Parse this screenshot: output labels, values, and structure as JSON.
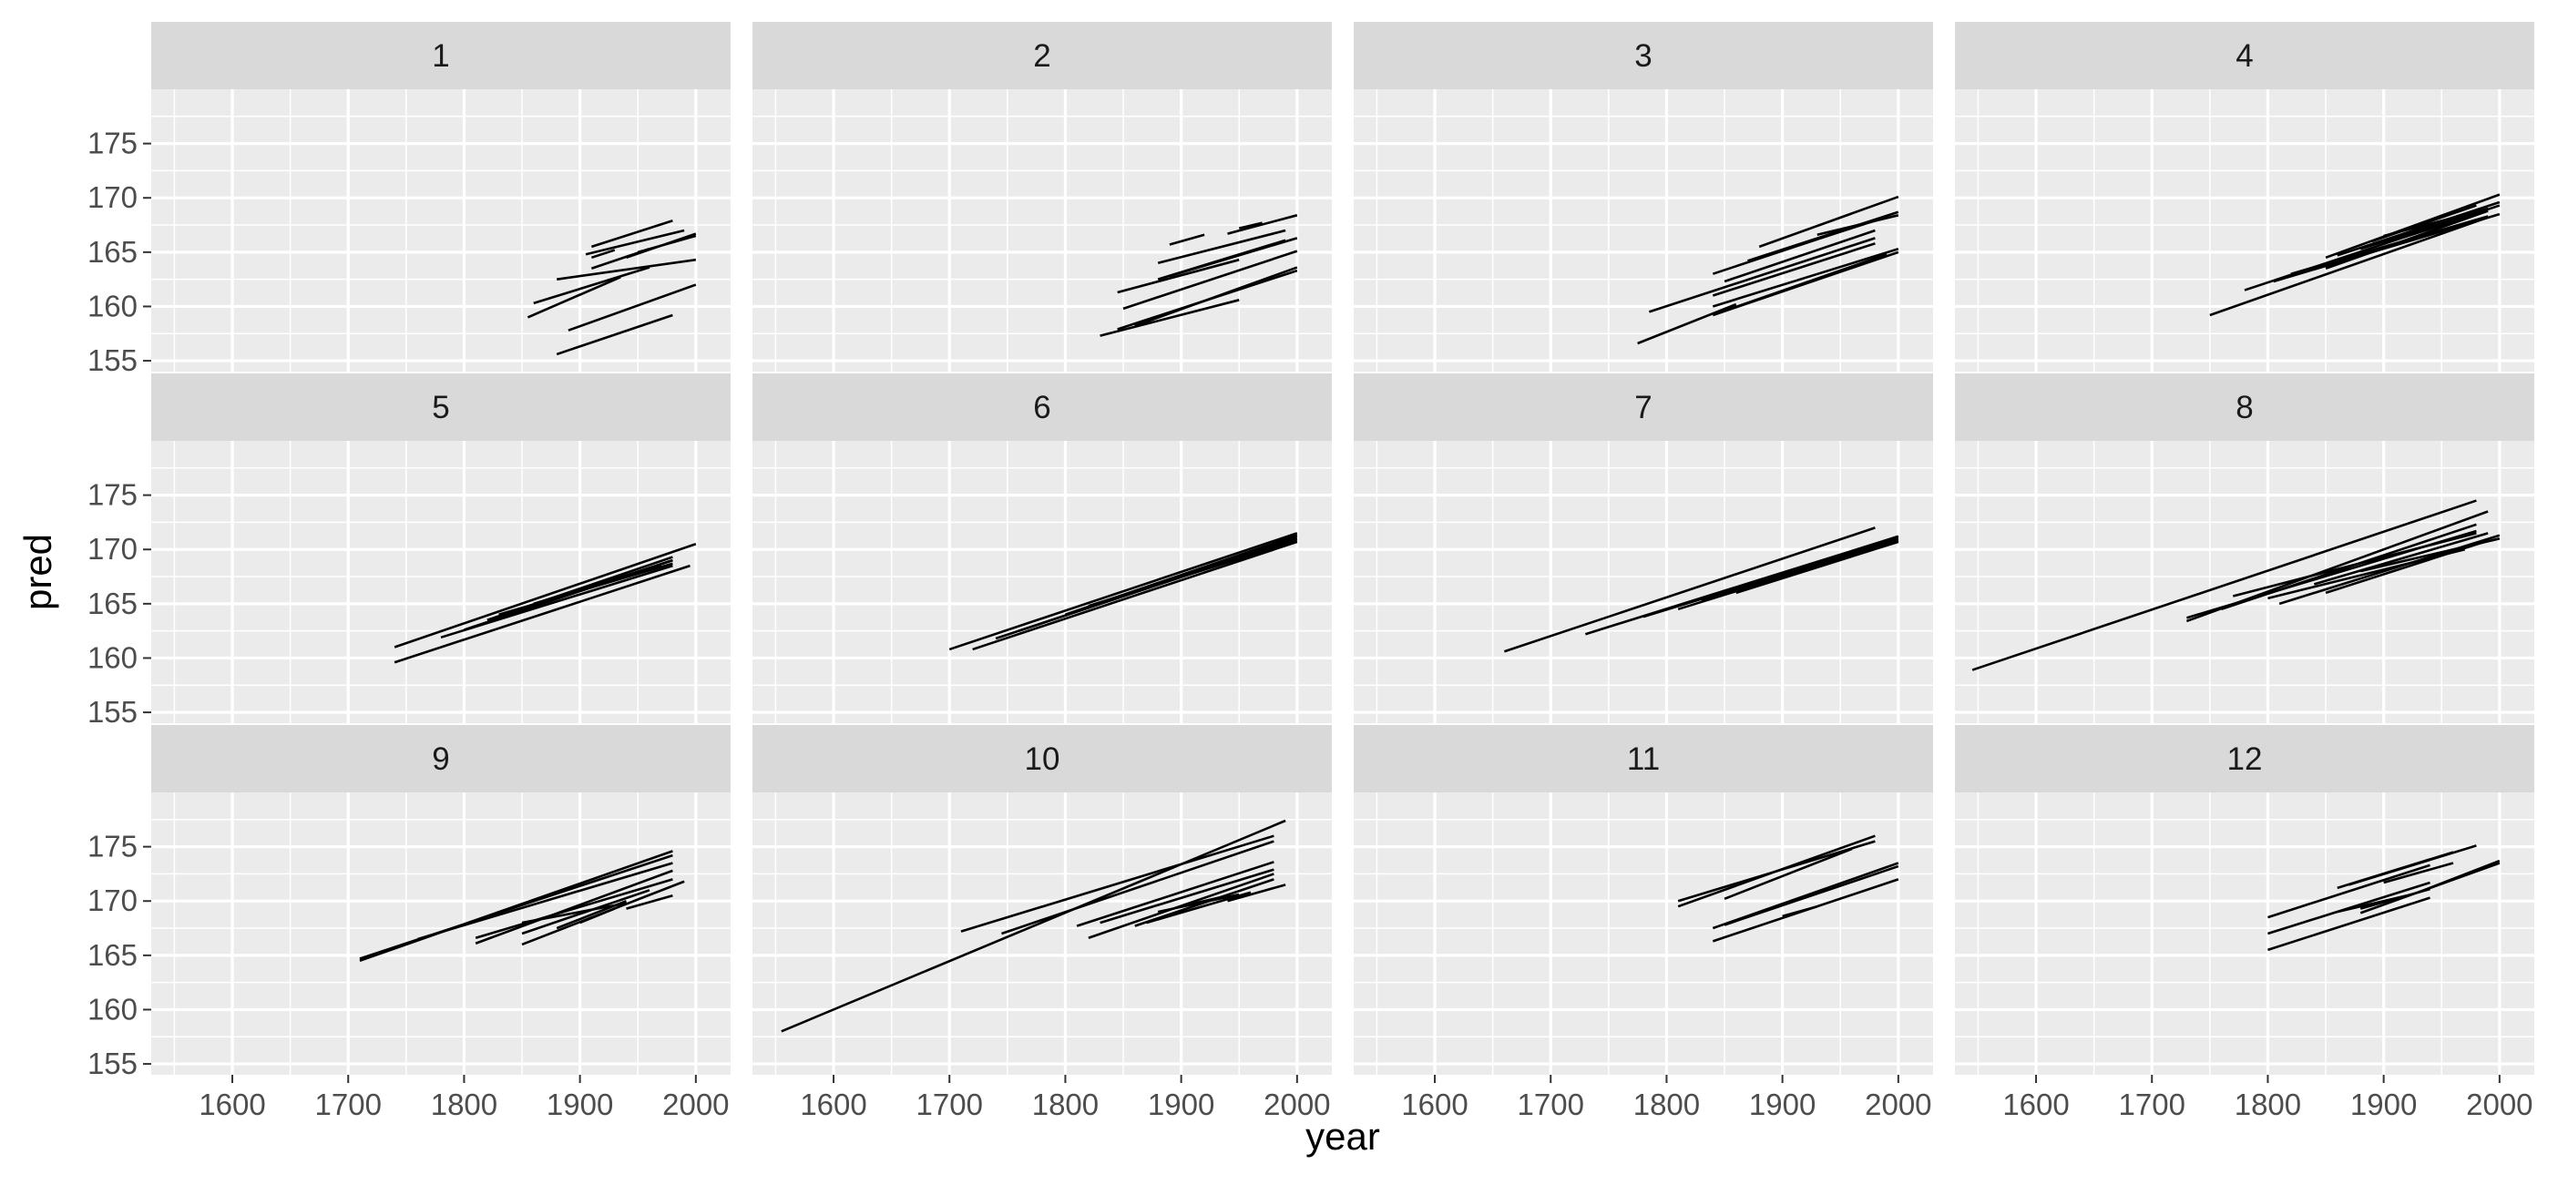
{
  "chart_data": {
    "type": "line",
    "xlabel": "year",
    "ylabel": "pred",
    "xlim": [
      1530,
      2030
    ],
    "ylim": [
      154,
      180
    ],
    "x_ticks": [
      1600,
      1700,
      1800,
      1900,
      2000
    ],
    "y_ticks": [
      155,
      160,
      165,
      170,
      175
    ],
    "grid": true,
    "panels": [
      {
        "label": "1",
        "segments": [
          [
            1880,
            155.6,
            1980,
            159.2
          ],
          [
            1890,
            157.8,
            2000,
            162.0
          ],
          [
            1855,
            159.0,
            1935,
            162.7
          ],
          [
            1860,
            160.3,
            1960,
            163.6
          ],
          [
            1880,
            162.5,
            2000,
            164.3
          ],
          [
            1910,
            163.5,
            1960,
            165.3
          ],
          [
            1910,
            164.5,
            1930,
            165.2
          ],
          [
            1905,
            164.8,
            1990,
            167.0
          ],
          [
            1910,
            165.5,
            1980,
            167.9
          ],
          [
            1940,
            164.5,
            2000,
            166.7
          ],
          [
            1950,
            165.0,
            2000,
            166.5
          ]
        ]
      },
      {
        "label": "2",
        "segments": [
          [
            1830,
            157.3,
            1950,
            160.6
          ],
          [
            1845,
            157.9,
            2000,
            163.3
          ],
          [
            1860,
            158.2,
            2000,
            163.6
          ],
          [
            1850,
            159.8,
            2000,
            165.1
          ],
          [
            1845,
            161.3,
            1950,
            164.3
          ],
          [
            1880,
            162.5,
            1990,
            166.1
          ],
          [
            1890,
            162.8,
            2000,
            166.3
          ],
          [
            1880,
            164.0,
            1990,
            167.0
          ],
          [
            1890,
            165.7,
            1920,
            166.6
          ],
          [
            1950,
            167.2,
            1970,
            167.7
          ],
          [
            1940,
            166.7,
            2000,
            168.4
          ]
        ]
      },
      {
        "label": "3",
        "segments": [
          [
            1775,
            156.6,
            1860,
            160.2
          ],
          [
            1840,
            159.2,
            2000,
            165.0
          ],
          [
            1850,
            159.6,
            1990,
            164.8
          ],
          [
            1840,
            160.0,
            2000,
            165.3
          ],
          [
            1785,
            159.5,
            1980,
            166.3
          ],
          [
            1840,
            161.0,
            1980,
            165.8
          ],
          [
            1840,
            163.0,
            1990,
            168.3
          ],
          [
            1850,
            162.3,
            1980,
            167.0
          ],
          [
            1870,
            164.2,
            2000,
            168.7
          ],
          [
            1880,
            164.5,
            1980,
            167.9
          ],
          [
            1880,
            165.5,
            2000,
            170.1
          ],
          [
            1930,
            166.6,
            2000,
            168.4
          ]
        ]
      },
      {
        "label": "4",
        "segments": [
          [
            1750,
            159.2,
            1990,
            168.2
          ],
          [
            1780,
            161.5,
            2000,
            169.3
          ],
          [
            1805,
            162.3,
            2000,
            168.5
          ],
          [
            1820,
            163.0,
            1990,
            168.3
          ],
          [
            1850,
            164.5,
            2000,
            170.3
          ],
          [
            1860,
            164.7,
            2000,
            169.6
          ],
          [
            1880,
            165.3,
            1990,
            169.0
          ],
          [
            1890,
            166.0,
            1980,
            169.3
          ],
          [
            1900,
            166.5,
            1990,
            169.0
          ],
          [
            1850,
            163.5,
            1990,
            168.8
          ],
          [
            1900,
            165.8,
            1990,
            168.8
          ]
        ]
      },
      {
        "label": "5",
        "segments": [
          [
            1740,
            159.6,
            1995,
            168.5
          ],
          [
            1740,
            161.0,
            2000,
            170.5
          ],
          [
            1780,
            161.9,
            1980,
            168.5
          ],
          [
            1800,
            162.6,
            1980,
            169.0
          ],
          [
            1820,
            163.5,
            1980,
            169.3
          ],
          [
            1850,
            164.5,
            1980,
            169.0
          ],
          [
            1830,
            164.0,
            1980,
            168.7
          ],
          [
            1860,
            165.0,
            1970,
            168.6
          ]
        ]
      },
      {
        "label": "6",
        "segments": [
          [
            1700,
            160.8,
            2000,
            171.5
          ],
          [
            1720,
            160.8,
            2000,
            170.7
          ],
          [
            1740,
            161.8,
            2000,
            171.0
          ],
          [
            1760,
            162.5,
            2000,
            171.0
          ],
          [
            1800,
            164.0,
            2000,
            171.3
          ],
          [
            1820,
            164.8,
            2000,
            170.8
          ],
          [
            1850,
            165.7,
            2000,
            171.2
          ]
        ]
      },
      {
        "label": "7",
        "segments": [
          [
            1660,
            160.6,
            1980,
            172.0
          ],
          [
            1730,
            162.2,
            2000,
            171.2
          ],
          [
            1780,
            163.8,
            2000,
            171.0
          ],
          [
            1810,
            164.5,
            2000,
            170.8
          ],
          [
            1830,
            165.3,
            2000,
            171.2
          ],
          [
            1860,
            166.0,
            2000,
            170.7
          ],
          [
            1870,
            166.5,
            1990,
            170.5
          ],
          [
            1900,
            167.6,
            2000,
            170.8
          ]
        ]
      },
      {
        "label": "8",
        "segments": [
          [
            1545,
            158.9,
            1980,
            174.5
          ],
          [
            1730,
            163.4,
            1990,
            173.5
          ],
          [
            1760,
            164.5,
            1980,
            172.3
          ],
          [
            1730,
            163.7,
            1980,
            171.7
          ],
          [
            1770,
            165.7,
            1980,
            171.5
          ],
          [
            1810,
            165.0,
            2000,
            171.3
          ],
          [
            1840,
            166.8,
            1990,
            171.5
          ],
          [
            1850,
            166.0,
            1990,
            170.8
          ],
          [
            1880,
            168.0,
            2000,
            171.0
          ],
          [
            1800,
            165.5,
            1970,
            170.0
          ]
        ]
      },
      {
        "label": "9",
        "segments": [
          [
            1710,
            164.5,
            1980,
            174.6
          ],
          [
            1710,
            164.7,
            1980,
            174.2
          ],
          [
            1760,
            166.5,
            1980,
            173.5
          ],
          [
            1810,
            166.1,
            1980,
            172.8
          ],
          [
            1810,
            166.6,
            1980,
            172.0
          ],
          [
            1850,
            166.0,
            1990,
            171.8
          ],
          [
            1850,
            167.0,
            1960,
            171.0
          ],
          [
            1880,
            167.5,
            1940,
            170.0
          ],
          [
            1900,
            168.0,
            1930,
            169.3
          ],
          [
            1940,
            169.3,
            1980,
            170.5
          ],
          [
            1850,
            168.0,
            1940,
            169.8
          ]
        ]
      },
      {
        "label": "10",
        "segments": [
          [
            1555,
            158.0,
            1990,
            177.4
          ],
          [
            1710,
            167.2,
            1980,
            176.0
          ],
          [
            1745,
            167.0,
            1980,
            175.5
          ],
          [
            1810,
            167.7,
            1980,
            173.6
          ],
          [
            1820,
            166.6,
            1980,
            172.5
          ],
          [
            1830,
            168.0,
            1980,
            172.9
          ],
          [
            1860,
            167.7,
            1980,
            172.0
          ],
          [
            1870,
            168.0,
            1960,
            170.8
          ],
          [
            1880,
            169.0,
            1950,
            170.6
          ],
          [
            1900,
            169.5,
            1940,
            170.5
          ],
          [
            1940,
            170.0,
            1990,
            171.5
          ]
        ]
      },
      {
        "label": "11",
        "segments": [
          [
            1810,
            169.5,
            1980,
            176.0
          ],
          [
            1810,
            170.0,
            1980,
            175.5
          ],
          [
            1840,
            167.5,
            2000,
            173.5
          ],
          [
            1850,
            167.8,
            2000,
            173.2
          ],
          [
            1840,
            166.3,
            2000,
            172.0
          ],
          [
            1850,
            170.2,
            1960,
            174.8
          ],
          [
            1900,
            168.6,
            1930,
            169.5
          ]
        ]
      },
      {
        "label": "12",
        "segments": [
          [
            1800,
            165.5,
            1940,
            170.3
          ],
          [
            1800,
            167.0,
            1940,
            171.7
          ],
          [
            1800,
            168.5,
            1940,
            173.3
          ],
          [
            1860,
            171.2,
            1960,
            174.5
          ],
          [
            1870,
            171.5,
            1980,
            175.1
          ],
          [
            1880,
            169.3,
            1940,
            171.1
          ],
          [
            1900,
            171.7,
            1960,
            173.5
          ],
          [
            1880,
            168.9,
            2000,
            173.5
          ],
          [
            1930,
            170.8,
            2000,
            173.7
          ],
          [
            1860,
            169.0,
            1920,
            170.5
          ]
        ]
      }
    ]
  },
  "colors": {
    "panel_bg": "#ebebeb",
    "strip_bg": "#d9d9d9",
    "grid": "#ffffff",
    "line": "#000000",
    "tick_text": "#4d4d4d"
  }
}
